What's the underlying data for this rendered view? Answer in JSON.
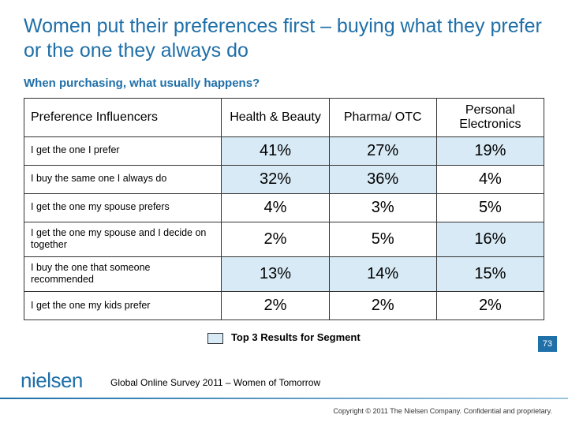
{
  "title": "Women put their preferences first – buying what they prefer or the one they always do",
  "subtitle": "When purchasing, what usually happens?",
  "table": {
    "columns": [
      "Preference Influencers",
      "Health & Beauty",
      "Pharma/ OTC",
      "Personal Electronics"
    ],
    "rows": [
      {
        "label": "I get the one I prefer",
        "values": [
          "41%",
          "27%",
          "19%"
        ],
        "highlight": [
          true,
          true,
          true
        ]
      },
      {
        "label": "I buy the same one I always do",
        "values": [
          "32%",
          "36%",
          "4%"
        ],
        "highlight": [
          true,
          true,
          false
        ]
      },
      {
        "label": "I get the one my spouse prefers",
        "values": [
          "4%",
          "3%",
          "5%"
        ],
        "highlight": [
          false,
          false,
          false
        ]
      },
      {
        "label": "I get the one my spouse and I decide on together",
        "values": [
          "2%",
          "5%",
          "16%"
        ],
        "highlight": [
          false,
          false,
          true
        ]
      },
      {
        "label": "I buy the one that someone recommended",
        "values": [
          "13%",
          "14%",
          "15%"
        ],
        "highlight": [
          true,
          true,
          true
        ]
      },
      {
        "label": "I get the one my kids prefer",
        "values": [
          "2%",
          "2%",
          "2%"
        ],
        "highlight": [
          false,
          false,
          false
        ]
      }
    ],
    "highlight_color": "#d8eaf5",
    "border_color": "#333333",
    "header_fontsize": 16,
    "cell_fontsize": 20,
    "rowlabel_fontsize": 12.5
  },
  "legend_text": "Top 3 Results for Segment",
  "page_number": "73",
  "survey_source": "Global Online Survey 2011 – Women of Tomorrow",
  "copyright": "Copyright © 2011 The Nielsen Company. Confidential and proprietary.",
  "logo_text": "nielsen",
  "colors": {
    "brand_blue": "#1f6fa8",
    "highlight": "#d8eaf5",
    "background": "#ffffff"
  }
}
